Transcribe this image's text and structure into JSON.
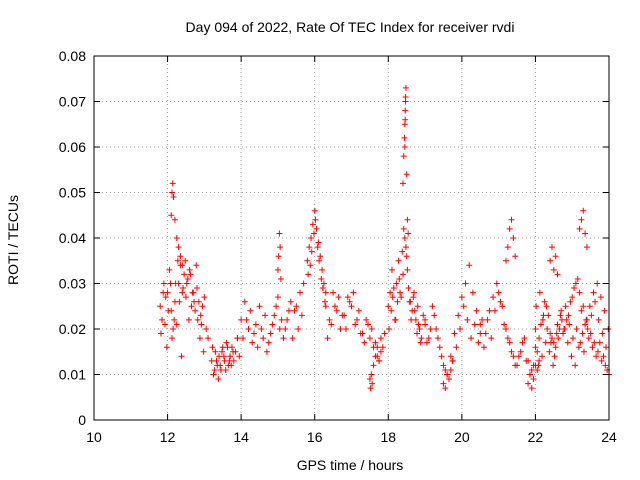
{
  "chart_data": {
    "type": "scatter",
    "title": "Day 094 of 2022, Rate Of TEC Index for receiver rvdi",
    "xlabel": "GPS time / hours",
    "ylabel": "ROTI / TECUs",
    "xlim": [
      10,
      24
    ],
    "ylim": [
      0,
      0.08
    ],
    "xticks": [
      "10",
      "12",
      "14",
      "16",
      "18",
      "20",
      "22",
      "24"
    ],
    "yticks": [
      "0",
      "0.01",
      "0.02",
      "0.03",
      "0.04",
      "0.05",
      "0.06",
      "0.07",
      "0.08"
    ],
    "grid": true,
    "marker": "+",
    "color": "#ff0000",
    "series": [
      {
        "name": "ROTI",
        "x": [
          11.8,
          11.85,
          11.9,
          11.95,
          12.0,
          12.05,
          12.1,
          12.15,
          12.2,
          12.25,
          12.3,
          12.35,
          12.4,
          12.45,
          12.5,
          12.55,
          12.6,
          12.65,
          12.7,
          12.75,
          12.8,
          12.85,
          12.9,
          12.95,
          13.0,
          13.05,
          13.1,
          11.82,
          11.88,
          11.93,
          11.98,
          12.02,
          12.08,
          12.12,
          12.18,
          12.22,
          12.28,
          12.32,
          12.38,
          12.42,
          12.48,
          12.52,
          12.58,
          12.62,
          12.68,
          12.72,
          12.78,
          12.82,
          12.88,
          12.92,
          12.98,
          12.1,
          12.12,
          12.14,
          12.16,
          12.2,
          12.25,
          12.3,
          12.35,
          12.4,
          13.2,
          13.25,
          13.3,
          13.35,
          13.4,
          13.45,
          13.5,
          13.55,
          13.6,
          13.65,
          13.7,
          13.75,
          13.8,
          13.85,
          13.9,
          13.22,
          13.28,
          13.33,
          13.38,
          13.43,
          13.48,
          13.53,
          13.58,
          13.63,
          13.68,
          13.73,
          13.78,
          13.9,
          14.0,
          14.1,
          14.2,
          14.3,
          14.4,
          14.5,
          14.6,
          14.7,
          14.8,
          14.9,
          15.0,
          15.1,
          15.2,
          15.3,
          15.4,
          15.5,
          15.6,
          15.7,
          13.95,
          14.05,
          14.15,
          14.25,
          14.35,
          14.45,
          14.55,
          14.65,
          14.75,
          14.85,
          14.95,
          15.05,
          15.15,
          15.25,
          15.35,
          15.45,
          15.55,
          15.65,
          15.0,
          15.02,
          15.04,
          15.06,
          15.08,
          15.8,
          15.85,
          15.9,
          15.95,
          16.0,
          16.05,
          16.1,
          16.15,
          16.2,
          16.25,
          16.3,
          15.82,
          15.88,
          15.92,
          15.98,
          16.02,
          16.08,
          16.12,
          16.18,
          16.22,
          16.28,
          16.3,
          16.4,
          16.5,
          16.6,
          16.7,
          16.8,
          16.9,
          17.0,
          17.1,
          17.2,
          17.3,
          17.4,
          17.5,
          17.6,
          17.7,
          17.8,
          17.9,
          16.35,
          16.45,
          16.55,
          16.65,
          16.75,
          16.85,
          16.95,
          17.05,
          17.15,
          17.25,
          17.35,
          17.45,
          17.55,
          17.65,
          17.75,
          17.85,
          17.5,
          17.52,
          17.54,
          17.56,
          17.6,
          17.65,
          17.7,
          17.75,
          17.8,
          18.0,
          18.05,
          18.1,
          18.15,
          18.2,
          18.25,
          18.3,
          18.35,
          18.4,
          18.45,
          18.5,
          18.55,
          18.6,
          18.65,
          18.7,
          18.75,
          18.8,
          18.85,
          18.9,
          18.95,
          19.0,
          18.02,
          18.08,
          18.12,
          18.18,
          18.22,
          18.28,
          18.32,
          18.38,
          18.42,
          18.48,
          18.52,
          18.58,
          18.62,
          18.68,
          18.72,
          18.78,
          18.82,
          18.88,
          18.4,
          18.42,
          18.44,
          18.45,
          18.46,
          18.47,
          18.48,
          18.5,
          18.52,
          18.54,
          18.45,
          18.46,
          18.47,
          19.0,
          19.1,
          19.2,
          19.3,
          19.4,
          19.5,
          19.6,
          19.7,
          19.8,
          19.9,
          20.0,
          20.1,
          20.2,
          20.3,
          20.4,
          20.5,
          19.05,
          19.15,
          19.25,
          19.35,
          19.45,
          19.55,
          19.65,
          19.75,
          19.85,
          19.95,
          20.05,
          20.15,
          20.25,
          20.35,
          20.45,
          19.5,
          19.55,
          19.6,
          19.65,
          19.7,
          19.75,
          20.5,
          20.6,
          20.7,
          20.8,
          20.9,
          21.0,
          21.1,
          21.2,
          21.3,
          21.4,
          21.5,
          21.6,
          21.7,
          21.8,
          21.9,
          22.0,
          20.55,
          20.65,
          20.75,
          20.85,
          20.95,
          21.05,
          21.15,
          21.25,
          21.35,
          21.45,
          21.55,
          21.65,
          21.75,
          21.85,
          21.95,
          21.2,
          21.25,
          21.3,
          21.35,
          21.4,
          21.45,
          21.8,
          21.85,
          21.9,
          21.95,
          22.0,
          22.05,
          22.1,
          22.0,
          22.1,
          22.2,
          22.3,
          22.4,
          22.5,
          22.6,
          22.7,
          22.8,
          22.9,
          23.0,
          23.1,
          23.2,
          23.3,
          23.4,
          23.5,
          23.6,
          23.7,
          23.8,
          23.9,
          24.0,
          22.05,
          22.15,
          22.25,
          22.35,
          22.45,
          22.55,
          22.65,
          22.75,
          22.85,
          22.95,
          23.05,
          23.15,
          23.25,
          23.35,
          23.45,
          23.55,
          23.65,
          23.75,
          23.85,
          23.95,
          22.02,
          22.12,
          22.22,
          22.32,
          22.42,
          22.52,
          22.62,
          22.72,
          22.82,
          22.92,
          23.02,
          23.12,
          23.22,
          23.32,
          23.42,
          23.52,
          23.62,
          23.72,
          23.82,
          23.92,
          22.08,
          22.18,
          22.28,
          22.38,
          22.48,
          22.58,
          22.68,
          22.78,
          22.88,
          22.98,
          23.08,
          23.18,
          23.28,
          23.38,
          23.48,
          23.58,
          23.68,
          23.78,
          23.88,
          23.98,
          23.2,
          23.25,
          23.3,
          23.35,
          23.4,
          22.4,
          22.45,
          22.5,
          22.55,
          22.6
        ],
        "y": [
          0.025,
          0.022,
          0.03,
          0.027,
          0.028,
          0.033,
          0.024,
          0.02,
          0.026,
          0.021,
          0.03,
          0.034,
          0.028,
          0.032,
          0.027,
          0.031,
          0.033,
          0.025,
          0.028,
          0.024,
          0.029,
          0.026,
          0.023,
          0.025,
          0.027,
          0.02,
          0.018,
          0.019,
          0.028,
          0.021,
          0.016,
          0.024,
          0.03,
          0.018,
          0.022,
          0.03,
          0.035,
          0.026,
          0.014,
          0.029,
          0.035,
          0.03,
          0.022,
          0.032,
          0.028,
          0.026,
          0.034,
          0.022,
          0.018,
          0.021,
          0.015,
          0.045,
          0.05,
          0.052,
          0.049,
          0.044,
          0.04,
          0.038,
          0.036,
          0.034,
          0.013,
          0.01,
          0.015,
          0.012,
          0.014,
          0.011,
          0.016,
          0.013,
          0.017,
          0.012,
          0.014,
          0.016,
          0.013,
          0.015,
          0.018,
          0.016,
          0.011,
          0.013,
          0.009,
          0.012,
          0.015,
          0.014,
          0.011,
          0.016,
          0.013,
          0.012,
          0.015,
          0.018,
          0.022,
          0.026,
          0.02,
          0.017,
          0.021,
          0.025,
          0.018,
          0.015,
          0.019,
          0.023,
          0.027,
          0.022,
          0.02,
          0.024,
          0.018,
          0.025,
          0.028,
          0.03,
          0.014,
          0.018,
          0.022,
          0.024,
          0.019,
          0.016,
          0.02,
          0.023,
          0.017,
          0.021,
          0.025,
          0.02,
          0.018,
          0.022,
          0.026,
          0.024,
          0.02,
          0.023,
          0.033,
          0.036,
          0.041,
          0.038,
          0.031,
          0.035,
          0.038,
          0.04,
          0.043,
          0.046,
          0.042,
          0.039,
          0.036,
          0.033,
          0.03,
          0.028,
          0.032,
          0.034,
          0.037,
          0.041,
          0.044,
          0.038,
          0.035,
          0.031,
          0.029,
          0.026,
          0.025,
          0.022,
          0.028,
          0.024,
          0.02,
          0.023,
          0.027,
          0.025,
          0.021,
          0.024,
          0.019,
          0.022,
          0.018,
          0.016,
          0.014,
          0.015,
          0.019,
          0.018,
          0.021,
          0.025,
          0.027,
          0.023,
          0.02,
          0.026,
          0.028,
          0.022,
          0.019,
          0.017,
          0.021,
          0.02,
          0.017,
          0.013,
          0.016,
          0.009,
          0.007,
          0.01,
          0.008,
          0.012,
          0.014,
          0.016,
          0.013,
          0.018,
          0.025,
          0.028,
          0.033,
          0.029,
          0.022,
          0.026,
          0.031,
          0.027,
          0.032,
          0.04,
          0.036,
          0.029,
          0.026,
          0.024,
          0.028,
          0.022,
          0.025,
          0.02,
          0.018,
          0.023,
          0.021,
          0.02,
          0.024,
          0.027,
          0.022,
          0.03,
          0.035,
          0.028,
          0.037,
          0.042,
          0.038,
          0.033,
          0.026,
          0.022,
          0.027,
          0.024,
          0.019,
          0.021,
          0.017,
          0.052,
          0.058,
          0.062,
          0.065,
          0.068,
          0.071,
          0.073,
          0.054,
          0.044,
          0.041,
          0.06,
          0.066,
          0.07,
          0.022,
          0.018,
          0.025,
          0.02,
          0.016,
          0.012,
          0.01,
          0.014,
          0.019,
          0.023,
          0.027,
          0.03,
          0.034,
          0.028,
          0.024,
          0.021,
          0.017,
          0.02,
          0.023,
          0.018,
          0.014,
          0.011,
          0.009,
          0.013,
          0.016,
          0.02,
          0.025,
          0.022,
          0.018,
          0.021,
          0.017,
          0.008,
          0.007,
          0.01,
          0.009,
          0.011,
          0.013,
          0.019,
          0.016,
          0.022,
          0.018,
          0.024,
          0.028,
          0.025,
          0.02,
          0.017,
          0.014,
          0.012,
          0.015,
          0.018,
          0.013,
          0.011,
          0.016,
          0.022,
          0.019,
          0.024,
          0.027,
          0.03,
          0.026,
          0.021,
          0.018,
          0.015,
          0.012,
          0.014,
          0.017,
          0.013,
          0.01,
          0.012,
          0.035,
          0.038,
          0.042,
          0.044,
          0.04,
          0.036,
          0.008,
          0.01,
          0.007,
          0.009,
          0.012,
          0.011,
          0.013,
          0.02,
          0.018,
          0.022,
          0.025,
          0.019,
          0.017,
          0.021,
          0.024,
          0.02,
          0.023,
          0.027,
          0.03,
          0.028,
          0.025,
          0.022,
          0.019,
          0.017,
          0.015,
          0.013,
          0.012,
          0.01,
          0.015,
          0.021,
          0.026,
          0.023,
          0.018,
          0.016,
          0.02,
          0.019,
          0.022,
          0.026,
          0.029,
          0.031,
          0.024,
          0.021,
          0.018,
          0.016,
          0.014,
          0.017,
          0.014,
          0.011,
          0.025,
          0.028,
          0.023,
          0.02,
          0.017,
          0.014,
          0.018,
          0.022,
          0.025,
          0.021,
          0.018,
          0.02,
          0.017,
          0.015,
          0.02,
          0.023,
          0.026,
          0.022,
          0.019,
          0.016,
          0.012,
          0.014,
          0.017,
          0.015,
          0.012,
          0.019,
          0.023,
          0.02,
          0.017,
          0.014,
          0.012,
          0.016,
          0.019,
          0.022,
          0.025,
          0.028,
          0.03,
          0.027,
          0.024,
          0.02,
          0.042,
          0.044,
          0.046,
          0.041,
          0.038,
          0.035,
          0.038,
          0.033,
          0.036,
          0.032
        ]
      }
    ]
  }
}
